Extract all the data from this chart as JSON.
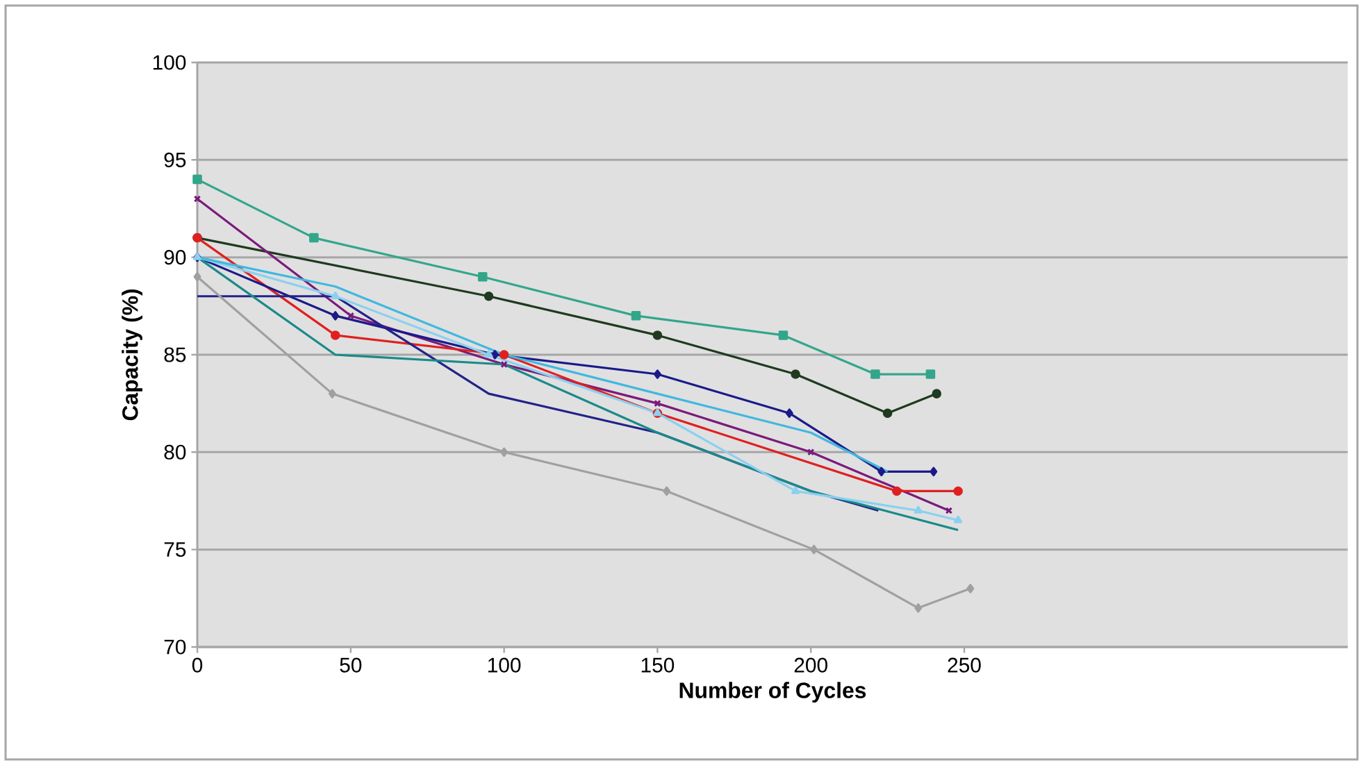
{
  "chart_data": {
    "type": "line",
    "xlabel": "Number of Cycles",
    "ylabel": "Capacity (%)",
    "xlim": [
      0,
      375
    ],
    "ylim": [
      70,
      100
    ],
    "xticks": [
      0,
      50,
      100,
      150,
      200,
      250
    ],
    "yticks": [
      70,
      75,
      80,
      85,
      90,
      95,
      100
    ],
    "grid": "y",
    "series": [
      {
        "color": "#33a68a",
        "marker": "square",
        "x": [
          0,
          38,
          93,
          143,
          191,
          221,
          239
        ],
        "values": [
          94,
          91,
          89,
          87,
          86,
          84,
          84
        ]
      },
      {
        "color": "#1f3a1f",
        "marker": "circle",
        "x": [
          0,
          95,
          150,
          195,
          225,
          241
        ],
        "values": [
          91,
          88,
          86,
          84,
          82,
          83
        ]
      },
      {
        "color": "#7b1a7b",
        "marker": "cross",
        "x": [
          0,
          50,
          100,
          150,
          200,
          245
        ],
        "values": [
          93,
          87,
          84.5,
          82.5,
          80,
          77
        ]
      },
      {
        "color": "#e02020",
        "marker": "circle",
        "x": [
          0,
          45,
          100,
          150,
          228,
          248
        ],
        "values": [
          91,
          86,
          85,
          82,
          78,
          78
        ]
      },
      {
        "color": "#1a1a8a",
        "marker": "diamond",
        "x": [
          0,
          45,
          97,
          150,
          193,
          223,
          240
        ],
        "values": [
          90,
          87,
          85,
          84,
          82,
          79,
          79
        ]
      },
      {
        "color": "#22228a",
        "marker": "none",
        "x": [
          0,
          45,
          95,
          150,
          200,
          222
        ],
        "values": [
          88,
          88,
          83,
          81,
          78,
          77
        ]
      },
      {
        "color": "#1a8a8a",
        "marker": "none",
        "x": [
          0,
          45,
          100,
          150,
          200,
          248
        ],
        "values": [
          90,
          85,
          84.5,
          81,
          78,
          76
        ]
      },
      {
        "color": "#8ad0f0",
        "marker": "triangle",
        "x": [
          0,
          45,
          95,
          150,
          195,
          235,
          248
        ],
        "values": [
          90,
          88,
          85,
          82,
          78,
          77,
          76.5
        ]
      },
      {
        "color": "#a0a0a0",
        "marker": "diamond",
        "x": [
          0,
          44,
          100,
          153,
          201,
          235,
          252
        ],
        "values": [
          89,
          83,
          80,
          78,
          75,
          72,
          73
        ]
      },
      {
        "color": "#40b8e0",
        "marker": "none",
        "x": [
          0,
          45,
          100,
          150,
          200,
          225
        ],
        "values": [
          90,
          88.5,
          85,
          83,
          81,
          79
        ]
      }
    ]
  }
}
